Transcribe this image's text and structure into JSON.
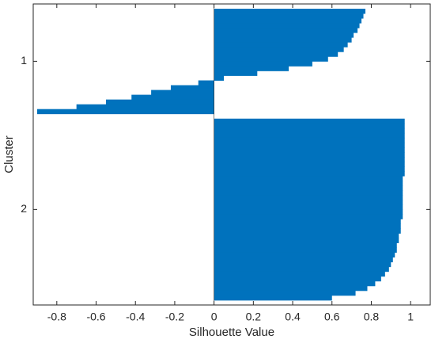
{
  "chart_data": {
    "type": "silhouette",
    "xlabel": "Silhouette Value",
    "ylabel": "Cluster",
    "categories": [
      "1",
      "2"
    ],
    "values": [
      [
        0.77,
        0.76,
        0.75,
        0.74,
        0.73,
        0.71,
        0.7,
        0.68,
        0.66,
        0.63,
        0.58,
        0.5,
        0.38,
        0.22,
        0.05,
        -0.08,
        -0.22,
        -0.32,
        -0.42,
        -0.55,
        -0.7,
        -0.9
      ],
      [
        0.97,
        0.97,
        0.97,
        0.97,
        0.97,
        0.97,
        0.97,
        0.97,
        0.97,
        0.97,
        0.97,
        0.97,
        0.96,
        0.96,
        0.96,
        0.96,
        0.96,
        0.96,
        0.96,
        0.96,
        0.96,
        0.95,
        0.95,
        0.95,
        0.94,
        0.94,
        0.93,
        0.93,
        0.92,
        0.91,
        0.9,
        0.89,
        0.87,
        0.85,
        0.82,
        0.78,
        0.72,
        0.6
      ]
    ],
    "color": "#0072bd",
    "xlim": [
      -0.92,
      1.1
    ],
    "xticks": [
      -0.8,
      -0.6,
      -0.4,
      -0.2,
      0,
      0.2,
      0.4,
      0.6,
      0.8,
      1
    ]
  }
}
